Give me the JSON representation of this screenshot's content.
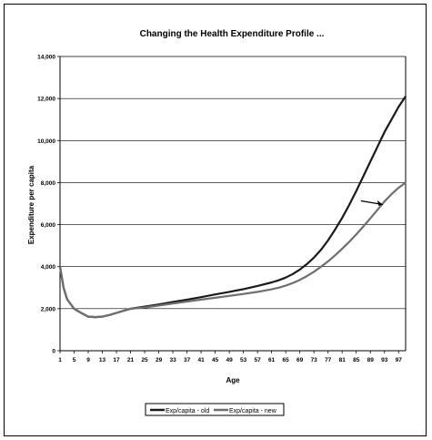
{
  "chart_data": {
    "type": "line",
    "title": "Changing the Health Expenditure Profile ...",
    "xlabel": "Age",
    "ylabel": "Expenditure per capita",
    "ylim": [
      0,
      14000
    ],
    "yticks": [
      0,
      2000,
      4000,
      6000,
      8000,
      10000,
      12000,
      14000
    ],
    "ytick_labels": [
      "0",
      "2,000",
      "4,000",
      "6,000",
      "8,000",
      "10,000",
      "12,000",
      "14,000"
    ],
    "xticks": [
      1,
      5,
      9,
      13,
      17,
      21,
      25,
      29,
      33,
      37,
      41,
      45,
      49,
      53,
      57,
      61,
      65,
      69,
      73,
      77,
      81,
      85,
      89,
      93,
      97
    ],
    "grid": true,
    "legend_position": "bottom",
    "annotations": [
      {
        "type": "arrow",
        "x": 92,
        "y": 7000,
        "target_series": "Exp/capita - new"
      }
    ],
    "series": [
      {
        "name": "Exp/capita - old",
        "color": "#1a1a1a",
        "x": [
          1,
          2,
          3,
          5,
          7,
          9,
          11,
          13,
          15,
          17,
          19,
          21,
          25,
          29,
          33,
          37,
          41,
          45,
          49,
          53,
          57,
          61,
          63,
          65,
          67,
          69,
          71,
          73,
          75,
          77,
          79,
          81,
          83,
          85,
          87,
          89,
          91,
          93,
          95,
          97,
          99
        ],
        "values": [
          4000,
          3000,
          2450,
          2000,
          1800,
          1620,
          1600,
          1620,
          1700,
          1800,
          1900,
          2000,
          2100,
          2200,
          2320,
          2430,
          2550,
          2680,
          2800,
          2930,
          3080,
          3250,
          3350,
          3480,
          3650,
          3860,
          4120,
          4430,
          4800,
          5250,
          5760,
          6320,
          6940,
          7600,
          8300,
          9000,
          9700,
          10400,
          11000,
          11600,
          12100
        ]
      },
      {
        "name": "Exp/capita - new",
        "color": "#6e6e6e",
        "x": [
          1,
          2,
          3,
          5,
          7,
          9,
          11,
          13,
          15,
          17,
          19,
          21,
          25,
          29,
          33,
          37,
          41,
          45,
          49,
          53,
          57,
          61,
          63,
          65,
          67,
          69,
          71,
          73,
          75,
          77,
          79,
          81,
          83,
          85,
          87,
          89,
          91,
          93,
          95,
          97,
          99
        ],
        "values": [
          4000,
          3000,
          2450,
          2000,
          1800,
          1620,
          1600,
          1620,
          1700,
          1800,
          1900,
          2000,
          2060,
          2150,
          2250,
          2340,
          2430,
          2520,
          2610,
          2700,
          2800,
          2920,
          3000,
          3100,
          3220,
          3370,
          3550,
          3760,
          3990,
          4250,
          4540,
          4850,
          5180,
          5530,
          5910,
          6300,
          6700,
          7100,
          7450,
          7750,
          8000
        ]
      }
    ]
  }
}
